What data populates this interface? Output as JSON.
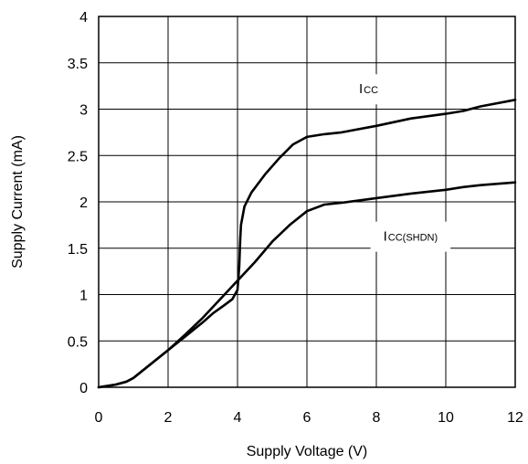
{
  "chart_data": {
    "type": "line",
    "title": "",
    "xlabel": "Supply Voltage (V)",
    "ylabel": "Supply Current (mA)",
    "xlim": [
      0,
      12
    ],
    "ylim": [
      0,
      4
    ],
    "xticks": [
      "0",
      "2",
      "4",
      "6",
      "8",
      "10",
      "12"
    ],
    "yticks": [
      "0",
      "0.5",
      "1",
      "1.5",
      "2",
      "2.5",
      "3",
      "3.5",
      "4"
    ],
    "grid": true,
    "series": [
      {
        "name": "ICC",
        "label_main": "I",
        "label_sub": "CC",
        "x": [
          0,
          0.5,
          0.8,
          1.0,
          1.5,
          2.0,
          2.5,
          3.0,
          3.3,
          3.6,
          3.85,
          4.0,
          4.05,
          4.08,
          4.1,
          4.2,
          4.4,
          4.8,
          5.2,
          5.6,
          6.0,
          6.5,
          7.0,
          8.0,
          9.0,
          10.0,
          10.5,
          11.0,
          12.0
        ],
        "y": [
          0,
          0.03,
          0.06,
          0.1,
          0.25,
          0.4,
          0.55,
          0.7,
          0.8,
          0.88,
          0.95,
          1.05,
          1.3,
          1.6,
          1.75,
          1.95,
          2.1,
          2.3,
          2.47,
          2.62,
          2.7,
          2.73,
          2.75,
          2.82,
          2.9,
          2.95,
          2.98,
          3.03,
          3.1
        ]
      },
      {
        "name": "ICC(SHDN)",
        "label_main": "I",
        "label_sub": "CC(SHDN)",
        "x": [
          0,
          0.5,
          0.8,
          1.0,
          1.5,
          2.0,
          2.5,
          3.0,
          3.5,
          4.0,
          4.5,
          5.0,
          5.5,
          6.0,
          6.5,
          7.0,
          8.0,
          9.0,
          10.0,
          10.5,
          11.0,
          12.0
        ],
        "y": [
          0,
          0.03,
          0.06,
          0.1,
          0.25,
          0.4,
          0.57,
          0.75,
          0.95,
          1.15,
          1.35,
          1.57,
          1.75,
          1.9,
          1.97,
          1.99,
          2.04,
          2.09,
          2.13,
          2.16,
          2.18,
          2.21
        ]
      }
    ],
    "series_labels": [
      {
        "series": 0,
        "at": [
          7.5,
          3.17
        ]
      },
      {
        "series": 1,
        "at": [
          8.2,
          1.58
        ]
      }
    ]
  }
}
